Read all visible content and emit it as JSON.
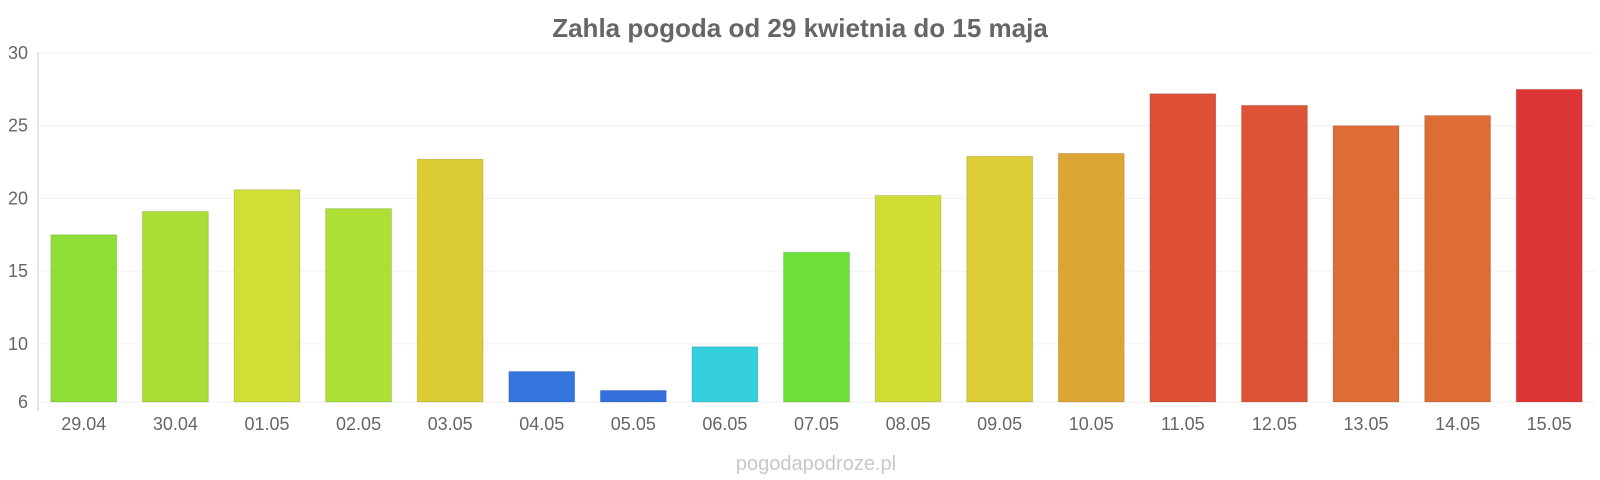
{
  "source_label": "pogodapodroze.pl",
  "chart_data": {
    "type": "bar",
    "title": "Zahla pogoda od 29 kwietnia do 15 maja",
    "xlabel": "",
    "ylabel": "",
    "ylim": [
      6,
      30
    ],
    "yticks": [
      6,
      10,
      15,
      20,
      25,
      30
    ],
    "grid": true,
    "categories": [
      "29.04",
      "30.04",
      "01.05",
      "02.05",
      "03.05",
      "04.05",
      "05.05",
      "06.05",
      "07.05",
      "08.05",
      "09.05",
      "10.05",
      "11.05",
      "12.05",
      "13.05",
      "14.05",
      "15.05"
    ],
    "values": [
      17.5,
      19.1,
      20.6,
      19.3,
      22.7,
      8.1,
      6.8,
      9.8,
      16.3,
      20.2,
      22.9,
      23.1,
      27.2,
      26.4,
      25.0,
      25.7,
      27.5
    ],
    "colors": [
      "#8ddf37",
      "#a8de35",
      "#cfdf35",
      "#addf35",
      "#dccc33",
      "#3475dd",
      "#3470dd",
      "#33cfdc",
      "#6ddf37",
      "#cfdd35",
      "#dccd34",
      "#dca634",
      "#dd5035",
      "#dd5335",
      "#dd6c35",
      "#dd6d35",
      "#dd3535"
    ]
  }
}
